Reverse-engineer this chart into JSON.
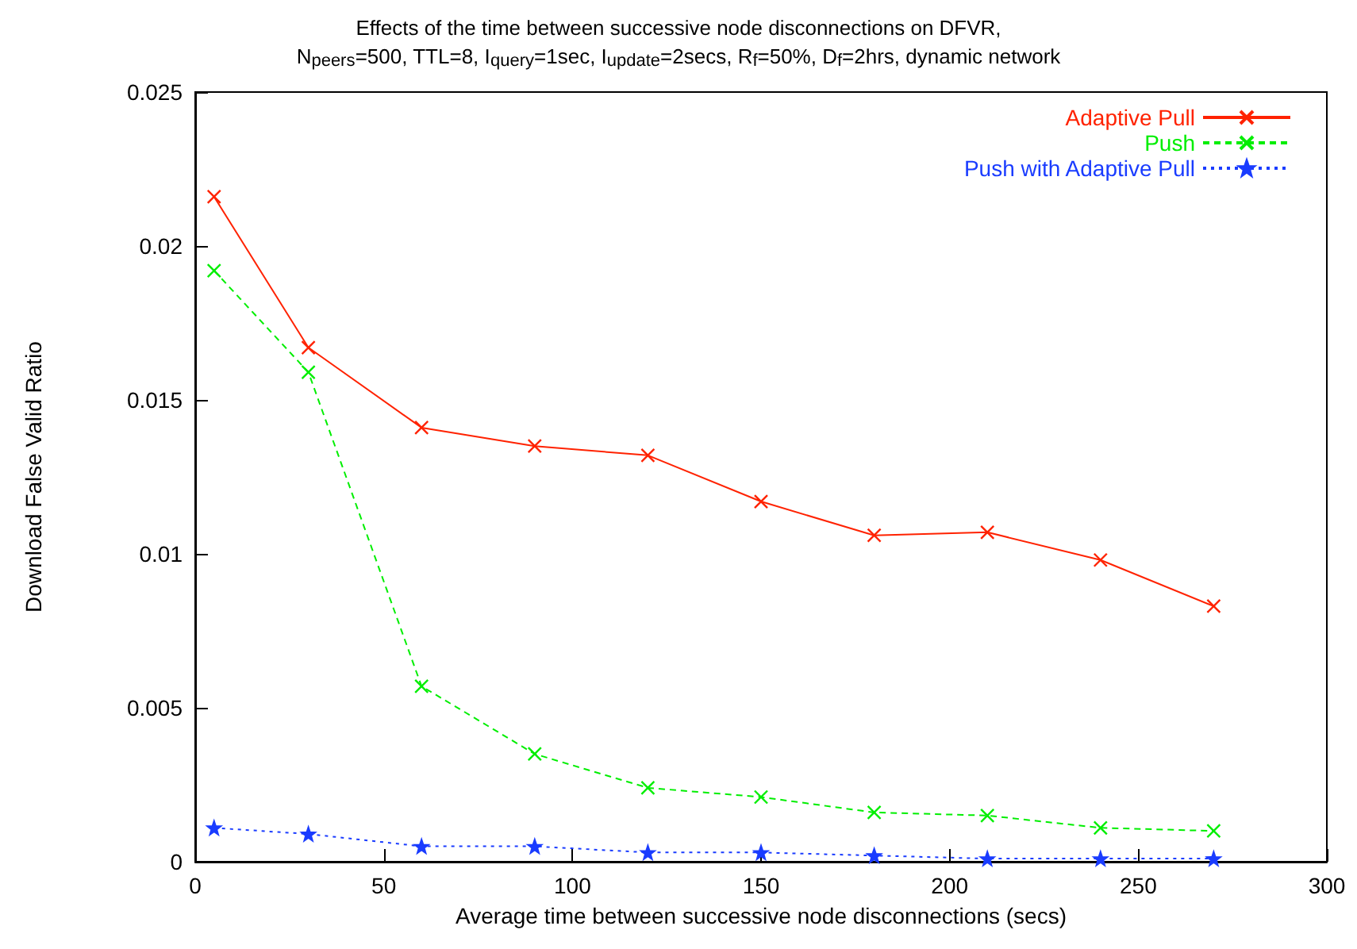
{
  "chart_data": {
    "type": "line",
    "title": "Effects of the time between successive node disconnections on DFVR,",
    "subtitle": "N$_{peers}$=500, TTL=8, I$_{query}$=1sec, I$_{update}$=2secs, R$_{f}$=50%, D$_{f}$=2hrs, dynamic network",
    "xlabel": "Average time between successive node disconnections (secs)",
    "ylabel": "Download False Valid Ratio",
    "x": [
      5,
      30,
      60,
      90,
      120,
      150,
      180,
      210,
      240,
      270
    ],
    "series": [
      {
        "name": "Adaptive Pull",
        "color": "#ff2200",
        "marker": "cross",
        "line_style": "solid",
        "values": [
          0.0216,
          0.0167,
          0.0141,
          0.0135,
          0.0132,
          0.0117,
          0.0106,
          0.0107,
          0.0098,
          0.0083
        ]
      },
      {
        "name": "Push",
        "color": "#00ee00",
        "marker": "cross",
        "line_style": "dashed",
        "values": [
          0.0192,
          0.0159,
          0.0057,
          0.0035,
          0.0024,
          0.0021,
          0.0016,
          0.0015,
          0.0011,
          0.001
        ]
      },
      {
        "name": "Push with Adaptive Pull",
        "color": "#1a3cff",
        "marker": "star",
        "line_style": "dotted",
        "values": [
          0.0011,
          0.0009,
          0.0005,
          0.0005,
          0.0003,
          0.0003,
          0.0002,
          0.0001,
          0.0001,
          0.0001
        ]
      }
    ],
    "xlim": [
      0,
      300
    ],
    "xticks": [
      0,
      50,
      100,
      150,
      200,
      250,
      300
    ],
    "ylim": [
      0,
      0.025
    ],
    "yticks": [
      0,
      0.005,
      0.01,
      0.015,
      0.02,
      0.025
    ],
    "grid": false,
    "legend": "top right"
  }
}
